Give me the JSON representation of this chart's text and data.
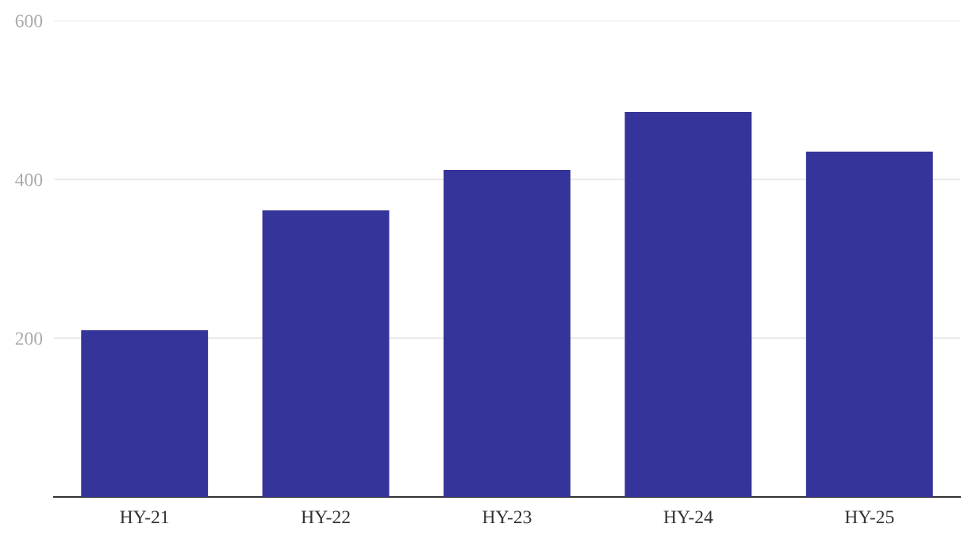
{
  "chart_data": {
    "type": "bar",
    "categories": [
      "HY-21",
      "HY-22",
      "HY-23",
      "HY-24",
      "HY-25"
    ],
    "values": [
      210,
      361,
      412,
      485,
      435
    ],
    "color": "#35349a",
    "ylim": [
      0,
      600
    ],
    "yticks": [
      200,
      400,
      600
    ],
    "grid": "y"
  }
}
